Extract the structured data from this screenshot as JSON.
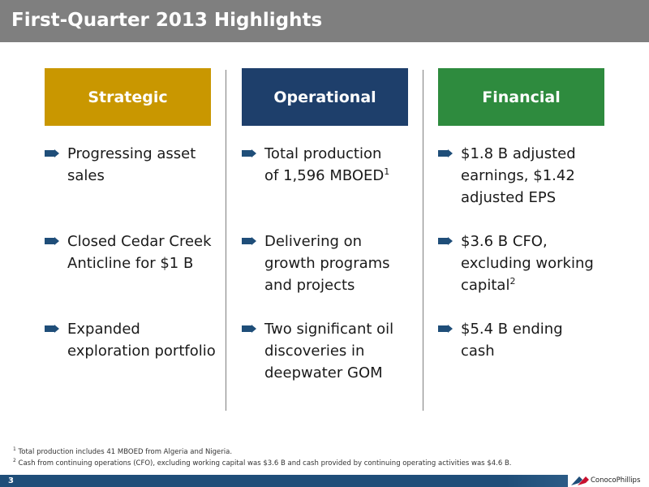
{
  "header": {
    "title": "First-Quarter 2013 Highlights"
  },
  "columns": [
    {
      "heading": "Strategic",
      "color": "#c99700",
      "bullets": [
        {
          "lines": [
            "Progressing asset",
            "sales"
          ]
        },
        {
          "lines": [
            "Closed Cedar Creek",
            "Anticline for $1 B"
          ]
        },
        {
          "lines": [
            "Expanded",
            "exploration portfolio"
          ]
        }
      ]
    },
    {
      "heading": "Operational",
      "color": "#1e3f6b",
      "bullets": [
        {
          "lines": [
            "Total production",
            "of 1,596 MBOED"
          ],
          "sup": "1"
        },
        {
          "lines": [
            "Delivering on",
            "growth programs",
            "and projects"
          ]
        },
        {
          "lines": [
            "Two significant oil",
            "discoveries in",
            "deepwater GOM"
          ]
        }
      ]
    },
    {
      "heading": "Financial",
      "color": "#2e8b3e",
      "bullets": [
        {
          "lines": [
            "$1.8 B adjusted",
            "earnings, $1.42",
            "adjusted EPS"
          ]
        },
        {
          "lines": [
            "$3.6 B CFO,",
            "excluding working",
            "capital"
          ],
          "sup": "2"
        },
        {
          "lines": [
            "$5.4 B ending",
            "cash"
          ]
        }
      ]
    }
  ],
  "footnotes": [
    {
      "mark": "1",
      "text": "Total production includes 41 MBOED from Algeria and Nigeria."
    },
    {
      "mark": "2",
      "text": "Cash from continuing operations (CFO), excluding working capital was $3.6 B and cash provided by continuing operating activities was $4.6 B."
    }
  ],
  "footer": {
    "page_number": "3",
    "logo_text": "ConocoPhillips"
  },
  "icons": {
    "bullet": "arrow-right-icon",
    "logo": "conocophillips-logo-icon"
  },
  "colors": {
    "title_bar": "#7f7f7f",
    "bullet_arrow": "#1f4e79",
    "footer_bar": "#1f4e79"
  }
}
